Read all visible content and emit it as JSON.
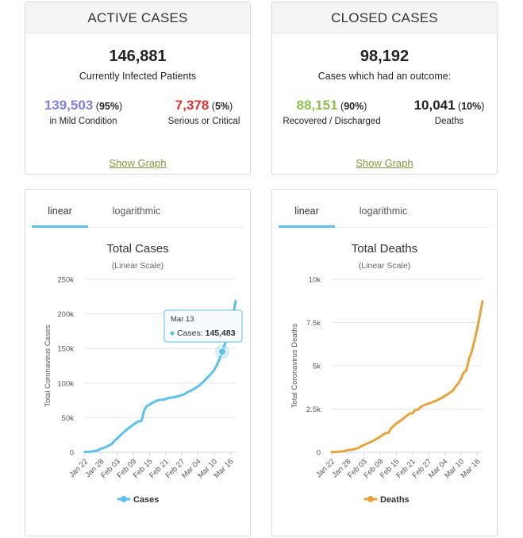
{
  "active": {
    "title": "ACTIVE CASES",
    "total": "146,881",
    "total_label": "Currently Infected Patients",
    "mild_num": "139,503",
    "mild_pct": "95%",
    "mild_label": "in Mild Condition",
    "serious_num": "7,378",
    "serious_pct": "5%",
    "serious_label": "Serious or Critical",
    "show_graph": "Show Graph"
  },
  "closed": {
    "title": "CLOSED CASES",
    "total": "98,192",
    "total_label": "Cases which had an outcome:",
    "recovered_num": "88,151",
    "recovered_pct": "90%",
    "recovered_label": "Recovered / Discharged",
    "deaths_num": "10,041",
    "deaths_pct": "10%",
    "deaths_label": "Deaths",
    "show_graph": "Show Graph"
  },
  "colors": {
    "mild": "#8080e0",
    "serious": "#e03030",
    "recovered": "#8cc152",
    "cases_line": "#5bc0eb",
    "deaths_line": "#e8a33d",
    "link": "#7a9e3c"
  },
  "tabs": {
    "linear": "linear",
    "log": "logarithmic"
  },
  "tooltip": {
    "date": "Mar 13",
    "label": "Cases:",
    "value": "145,483"
  },
  "chart_data": [
    {
      "type": "line",
      "title": "Total Cases",
      "subtitle": "(Linear Scale)",
      "ylabel": "Total Coronavirus Cases",
      "ylim": [
        0,
        250000
      ],
      "yticks": [
        0,
        50000,
        100000,
        150000,
        200000,
        250000
      ],
      "ytick_labels": [
        "0",
        "50k",
        "100k",
        "150k",
        "200k",
        "250k"
      ],
      "xtick_labels": [
        "Jan 22",
        "Jan 28",
        "Feb 03",
        "Feb 09",
        "Feb 15",
        "Feb 21",
        "Feb 27",
        "Mar 04",
        "Mar 10",
        "Mar 16"
      ],
      "legend": "bottom-center",
      "series": [
        {
          "name": "Cases",
          "values": [
            555,
            654,
            941,
            1434,
            2118,
            2927,
            5578,
            6166,
            8234,
            9927,
            12038,
            16787,
            19881,
            23892,
            27635,
            30817,
            34391,
            37120,
            40150,
            42762,
            44802,
            45221,
            60368,
            66885,
            69030,
            71224,
            73258,
            75136,
            75639,
            76197,
            76819,
            78572,
            78958,
            79561,
            80406,
            81388,
            82746,
            84112,
            86604,
            88585,
            90443,
            93016,
            95314,
            98425,
            102050,
            106099,
            109991,
            114381,
            118948,
            126214,
            134576,
            145483,
            156653,
            169593,
            182490,
            198238,
            218822
          ]
        }
      ]
    },
    {
      "type": "line",
      "title": "Total Deaths",
      "subtitle": "(Linear Scale)",
      "ylabel": "Total Coronavirus Deaths",
      "ylim": [
        0,
        10000
      ],
      "yticks": [
        0,
        2500,
        5000,
        7500,
        10000
      ],
      "ytick_labels": [
        "0",
        "2.5k",
        "5k",
        "7.5k",
        "10k"
      ],
      "xtick_labels": [
        "Jan 22",
        "Jan 28",
        "Feb 03",
        "Feb 09",
        "Feb 15",
        "Feb 21",
        "Feb 27",
        "Mar 04",
        "Mar 10",
        "Mar 16"
      ],
      "legend": "bottom-center",
      "series": [
        {
          "name": "Deaths",
          "values": [
            17,
            18,
            26,
            42,
            56,
            82,
            131,
            133,
            171,
            213,
            259,
            362,
            426,
            492,
            564,
            634,
            719,
            806,
            906,
            1013,
            1113,
            1118,
            1371,
            1523,
            1666,
            1770,
            1868,
            2007,
            2122,
            2247,
            2251,
            2458,
            2469,
            2629,
            2708,
            2770,
            2814,
            2872,
            2941,
            2996,
            3085,
            3160,
            3254,
            3348,
            3460,
            3558,
            3802,
            3988,
            4262,
            4615,
            4720,
            5404,
            5819,
            6440,
            7126,
            7905,
            8733
          ]
        }
      ]
    }
  ]
}
